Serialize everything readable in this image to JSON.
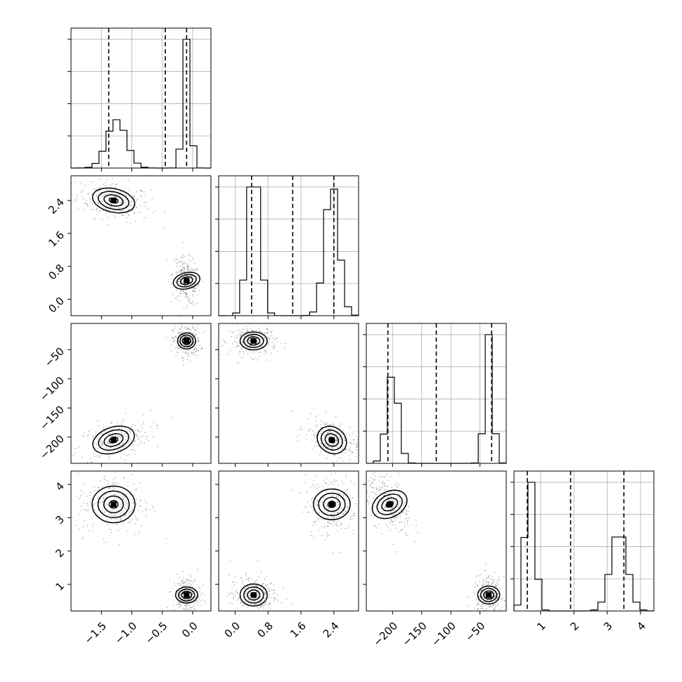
{
  "chart_data": {
    "type": "scatter",
    "variant": "corner-plot",
    "title": "",
    "parameters": [
      {
        "range": [
          -2.0,
          0.3
        ],
        "ticks": [
          -1.5,
          -1.0,
          -0.5,
          0.0
        ],
        "tick_labels": [
          "−1.5",
          "−1.0",
          "−0.5",
          "0.0"
        ],
        "quantiles": [
          -1.38,
          -0.45,
          -0.1
        ],
        "modes": [
          {
            "center": -1.25,
            "sd": 0.16,
            "w": 0.5
          },
          {
            "center": -0.1,
            "sd": 0.06,
            "w": 0.5
          }
        ]
      },
      {
        "range": [
          -0.4,
          3.0
        ],
        "ticks": [
          0.0,
          0.8,
          1.6,
          2.4
        ],
        "tick_labels": [
          "0.0",
          "0.8",
          "1.6",
          "2.4"
        ],
        "quantiles": [
          0.4,
          1.4,
          2.4
        ],
        "modes": [
          {
            "center": 0.45,
            "sd": 0.15,
            "w": 0.5
          },
          {
            "center": 2.35,
            "sd": 0.17,
            "w": 0.5
          }
        ]
      },
      {
        "range": [
          -245,
          -5
        ],
        "ticks": [
          -200,
          -150,
          -100,
          -50
        ],
        "tick_labels": [
          "−200",
          "−150",
          "−100",
          "−50"
        ],
        "quantiles": [
          -208,
          -125,
          -30
        ],
        "modes": [
          {
            "center": -200,
            "sd": 10,
            "w": 0.5
          },
          {
            "center": -35,
            "sd": 7,
            "w": 0.5
          }
        ]
      },
      {
        "range": [
          0.2,
          4.4
        ],
        "ticks": [
          1,
          2,
          3,
          4
        ],
        "tick_labels": [
          "1",
          "2",
          "3",
          "4"
        ],
        "quantiles": [
          0.6,
          1.9,
          3.5
        ],
        "modes": [
          {
            "center": 0.68,
            "sd": 0.15,
            "w": 0.5
          },
          {
            "center": 3.35,
            "sd": 0.25,
            "w": 0.5
          }
        ]
      }
    ],
    "pair_clusters": {
      "1-0": [
        {
          "cx": -1.3,
          "cy": 2.4,
          "sx": 0.16,
          "sy": 0.13,
          "rho": -0.3
        },
        {
          "cx": -0.1,
          "cy": 0.45,
          "sx": 0.06,
          "sy": 0.15,
          "rho": -0.3
        }
      ],
      "2-0": [
        {
          "cx": -1.3,
          "cy": -205,
          "sx": 0.16,
          "sy": 10,
          "rho": 0.4
        },
        {
          "cx": -0.1,
          "cy": -35,
          "sx": 0.06,
          "sy": 7,
          "rho": 0
        }
      ],
      "3-0": [
        {
          "cx": -1.3,
          "cy": 3.4,
          "sx": 0.16,
          "sy": 0.25,
          "rho": 0
        },
        {
          "cx": -0.1,
          "cy": 0.68,
          "sx": 0.06,
          "sy": 0.15,
          "rho": 0
        }
      ],
      "2-1": [
        {
          "cx": 0.45,
          "cy": -35,
          "sx": 0.15,
          "sy": 7,
          "rho": 0
        },
        {
          "cx": 2.35,
          "cy": -205,
          "sx": 0.17,
          "sy": 10,
          "rho": -0.5
        }
      ],
      "3-1": [
        {
          "cx": 0.45,
          "cy": 0.68,
          "sx": 0.15,
          "sy": 0.15,
          "rho": 0
        },
        {
          "cx": 2.35,
          "cy": 3.4,
          "sx": 0.17,
          "sy": 0.25,
          "rho": 0
        }
      ],
      "3-2": [
        {
          "cx": -205,
          "cy": 3.4,
          "sx": 10,
          "sy": 0.25,
          "rho": -0.5
        },
        {
          "cx": -35,
          "cy": 0.68,
          "sx": 7,
          "sy": 0.15,
          "rho": 0
        }
      ]
    },
    "grid": true,
    "legend": "none"
  }
}
